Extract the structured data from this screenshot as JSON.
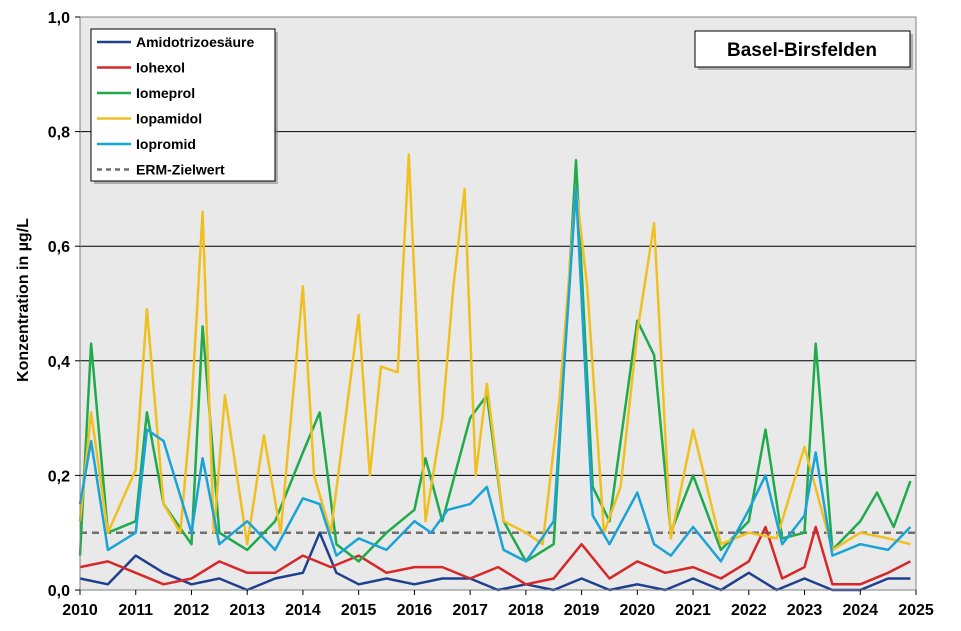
{
  "chart_data": {
    "type": "line",
    "title": "",
    "station_label": "Basel-Birsfelden",
    "ylabel": "Konzentration in µg/L",
    "xlabel": "",
    "ylim": [
      0,
      1.0
    ],
    "xlim": [
      2010,
      2025
    ],
    "y_ticks": [
      0.0,
      0.2,
      0.4,
      0.6,
      0.8,
      1.0
    ],
    "y_tick_labels": [
      "0,0",
      "0,2",
      "0,4",
      "0,6",
      "0,8",
      "1,0"
    ],
    "x_ticks": [
      2010,
      2011,
      2012,
      2013,
      2014,
      2015,
      2016,
      2017,
      2018,
      2019,
      2020,
      2021,
      2022,
      2023,
      2024,
      2025
    ],
    "x_tick_labels": [
      "2010",
      "2011",
      "2012",
      "2013",
      "2014",
      "2015",
      "2016",
      "2017",
      "2018",
      "2019",
      "2020",
      "2021",
      "2022",
      "2023",
      "2024",
      "2025"
    ],
    "grid": "horizontal",
    "plot_background": "#e9e9e9",
    "legend_position": "top-left",
    "reference_line": {
      "name": "ERM-Zielwert",
      "value": 0.1,
      "color": "#707070",
      "style": "dashed"
    },
    "series": [
      {
        "name": "Amidotrizoesäure",
        "color": "#1f3f8f",
        "x": [
          2010.0,
          2010.5,
          2011.0,
          2011.5,
          2012.0,
          2012.5,
          2013.0,
          2013.5,
          2014.0,
          2014.3,
          2014.6,
          2015.0,
          2015.5,
          2016.0,
          2016.5,
          2017.0,
          2017.5,
          2018.0,
          2018.5,
          2019.0,
          2019.5,
          2020.0,
          2020.5,
          2021.0,
          2021.5,
          2022.0,
          2022.5,
          2023.0,
          2023.5,
          2024.0,
          2024.5,
          2024.9
        ],
        "values": [
          0.02,
          0.01,
          0.06,
          0.03,
          0.01,
          0.02,
          0.0,
          0.02,
          0.03,
          0.1,
          0.03,
          0.01,
          0.02,
          0.01,
          0.02,
          0.02,
          0.0,
          0.01,
          0.0,
          0.02,
          0.0,
          0.01,
          0.0,
          0.02,
          0.0,
          0.03,
          0.0,
          0.02,
          0.0,
          0.0,
          0.02,
          0.02
        ]
      },
      {
        "name": "Iohexol",
        "color": "#d62828",
        "x": [
          2010.0,
          2010.5,
          2011.0,
          2011.5,
          2012.0,
          2012.5,
          2013.0,
          2013.5,
          2014.0,
          2014.5,
          2015.0,
          2015.5,
          2016.0,
          2016.5,
          2017.0,
          2017.5,
          2018.0,
          2018.5,
          2019.0,
          2019.5,
          2020.0,
          2020.5,
          2021.0,
          2021.5,
          2022.0,
          2022.3,
          2022.6,
          2023.0,
          2023.2,
          2023.5,
          2024.0,
          2024.5,
          2024.9
        ],
        "values": [
          0.04,
          0.05,
          0.03,
          0.01,
          0.02,
          0.05,
          0.03,
          0.03,
          0.06,
          0.04,
          0.06,
          0.03,
          0.04,
          0.04,
          0.02,
          0.04,
          0.01,
          0.02,
          0.08,
          0.02,
          0.05,
          0.03,
          0.04,
          0.02,
          0.05,
          0.11,
          0.02,
          0.04,
          0.11,
          0.01,
          0.01,
          0.03,
          0.05
        ]
      },
      {
        "name": "Iomeprol",
        "color": "#1faa4b",
        "x": [
          2010.0,
          2010.2,
          2010.5,
          2011.0,
          2011.2,
          2011.5,
          2012.0,
          2012.2,
          2012.5,
          2013.0,
          2013.5,
          2014.0,
          2014.3,
          2014.6,
          2015.0,
          2015.5,
          2016.0,
          2016.2,
          2016.5,
          2017.0,
          2017.3,
          2017.6,
          2018.0,
          2018.5,
          2018.9,
          2019.2,
          2019.5,
          2020.0,
          2020.3,
          2020.6,
          2021.0,
          2021.5,
          2022.0,
          2022.3,
          2022.6,
          2023.0,
          2023.2,
          2023.5,
          2024.0,
          2024.3,
          2024.6,
          2024.9
        ],
        "values": [
          0.06,
          0.43,
          0.1,
          0.12,
          0.31,
          0.15,
          0.08,
          0.46,
          0.1,
          0.07,
          0.12,
          0.24,
          0.31,
          0.08,
          0.05,
          0.1,
          0.14,
          0.23,
          0.12,
          0.3,
          0.34,
          0.12,
          0.05,
          0.08,
          0.75,
          0.18,
          0.12,
          0.47,
          0.41,
          0.1,
          0.2,
          0.07,
          0.12,
          0.28,
          0.09,
          0.1,
          0.43,
          0.07,
          0.12,
          0.17,
          0.11,
          0.19
        ]
      },
      {
        "name": "Iopamidol",
        "color": "#f0c020",
        "x": [
          2010.0,
          2010.2,
          2010.5,
          2011.0,
          2011.2,
          2011.5,
          2011.8,
          2012.0,
          2012.2,
          2012.4,
          2012.6,
          2013.0,
          2013.3,
          2013.6,
          2014.0,
          2014.2,
          2014.5,
          2015.0,
          2015.2,
          2015.4,
          2015.7,
          2015.9,
          2016.2,
          2016.5,
          2016.7,
          2016.9,
          2017.1,
          2017.3,
          2017.6,
          2018.0,
          2018.3,
          2018.6,
          2018.9,
          2019.1,
          2019.4,
          2019.7,
          2020.0,
          2020.3,
          2020.6,
          2021.0,
          2021.5,
          2022.0,
          2022.5,
          2023.0,
          2023.5,
          2024.0,
          2024.5,
          2024.9
        ],
        "values": [
          0.12,
          0.31,
          0.1,
          0.21,
          0.49,
          0.15,
          0.1,
          0.32,
          0.66,
          0.1,
          0.34,
          0.08,
          0.27,
          0.1,
          0.53,
          0.2,
          0.1,
          0.48,
          0.2,
          0.39,
          0.38,
          0.76,
          0.12,
          0.3,
          0.53,
          0.7,
          0.2,
          0.36,
          0.12,
          0.1,
          0.08,
          0.33,
          0.7,
          0.53,
          0.1,
          0.18,
          0.45,
          0.64,
          0.09,
          0.28,
          0.08,
          0.1,
          0.09,
          0.25,
          0.07,
          0.1,
          0.09,
          0.08
        ]
      },
      {
        "name": "Iopromid",
        "color": "#1aa3d6",
        "x": [
          2010.0,
          2010.2,
          2010.5,
          2011.0,
          2011.2,
          2011.5,
          2012.0,
          2012.2,
          2012.5,
          2013.0,
          2013.5,
          2014.0,
          2014.3,
          2014.6,
          2015.0,
          2015.5,
          2016.0,
          2016.3,
          2016.6,
          2017.0,
          2017.3,
          2017.6,
          2018.0,
          2018.5,
          2018.9,
          2019.2,
          2019.5,
          2020.0,
          2020.3,
          2020.6,
          2021.0,
          2021.5,
          2022.0,
          2022.3,
          2022.6,
          2023.0,
          2023.2,
          2023.5,
          2024.0,
          2024.5,
          2024.9
        ],
        "values": [
          0.15,
          0.26,
          0.07,
          0.1,
          0.28,
          0.26,
          0.1,
          0.23,
          0.08,
          0.12,
          0.07,
          0.16,
          0.15,
          0.06,
          0.09,
          0.07,
          0.12,
          0.1,
          0.14,
          0.15,
          0.18,
          0.07,
          0.05,
          0.12,
          0.7,
          0.13,
          0.08,
          0.17,
          0.08,
          0.06,
          0.11,
          0.05,
          0.14,
          0.2,
          0.08,
          0.13,
          0.24,
          0.06,
          0.08,
          0.07,
          0.11
        ]
      }
    ]
  }
}
